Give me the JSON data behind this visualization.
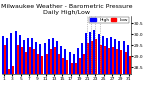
{
  "title": "Milwaukee Weather - Barometric Pressure",
  "subtitle": "Daily High/Low",
  "ylim": [
    28.2,
    30.85
  ],
  "legend_blue": "High",
  "legend_red": "Low",
  "color_high": "#0000ff",
  "color_low": "#ff0000",
  "background": "#ffffff",
  "days": [
    1,
    2,
    3,
    4,
    5,
    6,
    7,
    8,
    9,
    10,
    11,
    12,
    13,
    14,
    15,
    16,
    17,
    18,
    19,
    20,
    21,
    22,
    23,
    24,
    25,
    26,
    27,
    28,
    29,
    30,
    31
  ],
  "highs": [
    29.92,
    29.85,
    30.05,
    30.15,
    29.95,
    29.75,
    29.85,
    29.82,
    29.65,
    29.55,
    29.6,
    29.78,
    29.82,
    29.68,
    29.48,
    29.32,
    29.22,
    29.12,
    29.38,
    29.62,
    30.08,
    30.12,
    30.18,
    30.02,
    29.92,
    29.82,
    29.88,
    29.78,
    29.72,
    29.68,
    29.52
  ],
  "lows": [
    29.52,
    28.42,
    28.55,
    29.52,
    29.42,
    29.22,
    29.42,
    29.32,
    29.12,
    29.02,
    29.12,
    29.32,
    29.42,
    29.12,
    28.92,
    28.82,
    28.72,
    28.68,
    28.92,
    29.12,
    29.62,
    29.72,
    29.78,
    29.52,
    29.48,
    29.38,
    29.42,
    29.32,
    29.28,
    29.22,
    29.02
  ],
  "dotted_line_indices": [
    20,
    21,
    22,
    23
  ],
  "yticks": [
    28.5,
    29.0,
    29.5,
    30.0,
    30.5
  ],
  "xtick_step": 2,
  "title_fontsize": 4.5,
  "tick_fontsize": 3.2,
  "legend_fontsize": 3.2,
  "bar_gap": 0.04,
  "figsize": [
    1.6,
    0.87
  ],
  "dpi": 100
}
